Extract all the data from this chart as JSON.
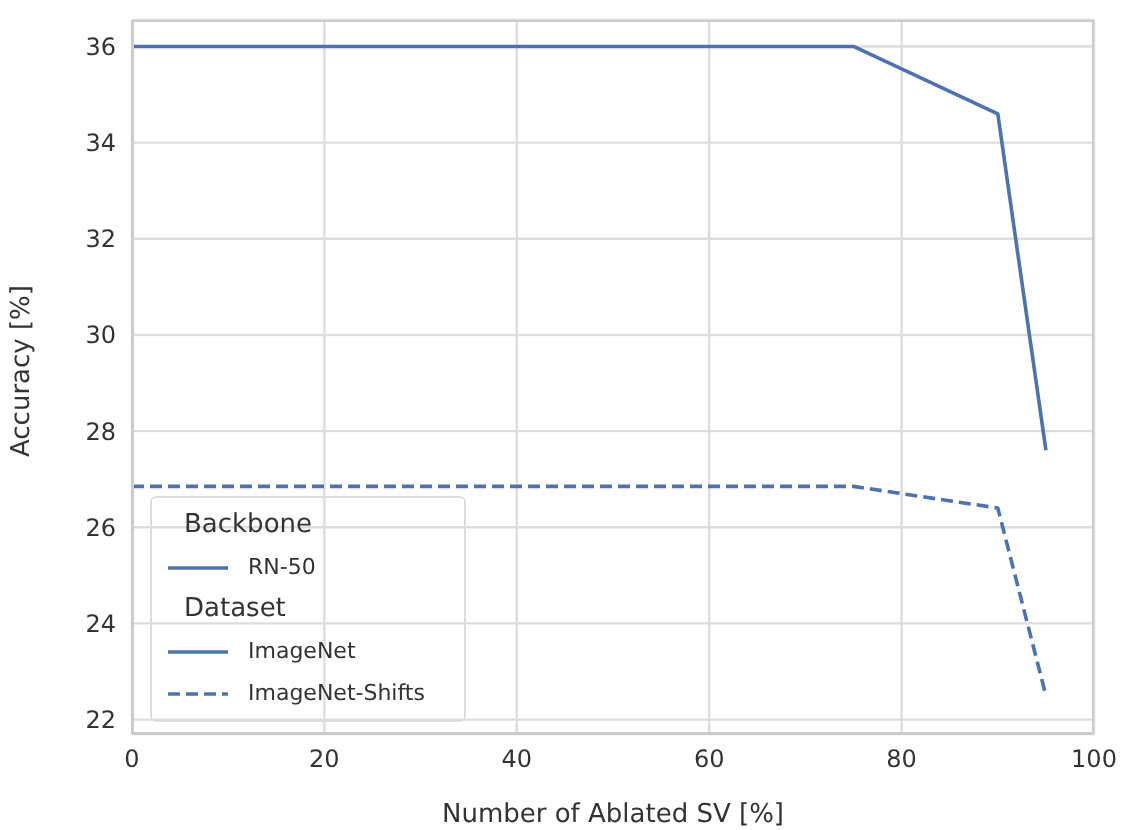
{
  "chart_data": {
    "type": "line",
    "xlabel": "Number of Ablated SV [%]",
    "ylabel": "Accuracy [%]",
    "legend_title": "Backbone",
    "annotations": [
      "RN-50",
      "Dataset"
    ],
    "series": [
      {
        "name": "ImageNet",
        "color": "#4c72b0",
        "line_style": "solid",
        "x": [
          0,
          75,
          90,
          95
        ],
        "values": [
          36,
          36,
          34.6,
          27.6
        ]
      },
      {
        "name": "ImageNet-Shifts",
        "color": "#4c72b0",
        "line_style": "dashed",
        "x": [
          0,
          75,
          90,
          95
        ],
        "values": [
          26.85,
          26.85,
          26.4,
          22.5
        ]
      }
    ],
    "xlim": [
      0,
      100
    ],
    "xticks": [
      0,
      20,
      40,
      60,
      80,
      100
    ],
    "ylim": [
      21.7,
      36.55
    ],
    "yticks": [
      22,
      24,
      26,
      28,
      30,
      32,
      34,
      36
    ],
    "grid": true,
    "legend": "bottom left",
    "marker": "none"
  }
}
